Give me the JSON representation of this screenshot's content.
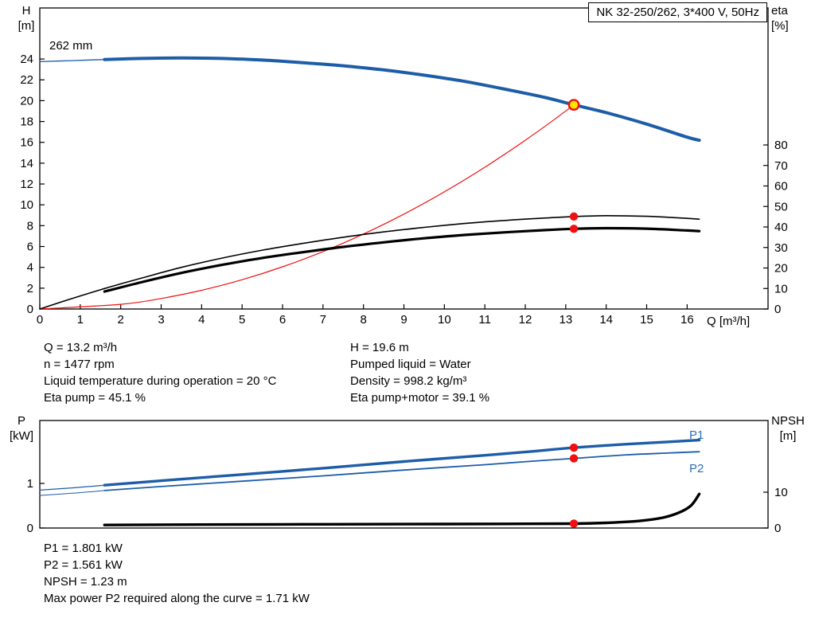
{
  "title_box": {
    "text": "NK 32-250/262, 3*400 V, 50Hz"
  },
  "labels": {
    "h_axis": [
      "H",
      "[m]"
    ],
    "eta_axis": [
      "eta",
      "[%]"
    ],
    "q_axis": "Q [m³/h]",
    "impeller": "262 mm",
    "p_axis": [
      "P",
      "[kW]"
    ],
    "npsh_axis": [
      "NPSH",
      "[m]"
    ],
    "p1": "P1",
    "p2": "P2"
  },
  "info_top": {
    "left": [
      "Q = 13.2 m³/h",
      "n = 1477 rpm",
      "Liquid temperature during operation = 20 °C",
      "Eta pump = 45.1 %"
    ],
    "right": [
      "H = 19.6 m",
      "Pumped liquid = Water",
      "Density = 998.2 kg/m³",
      "Eta pump+motor = 39.1 %"
    ]
  },
  "info_bottom": [
    "P1 = 1.801 kW",
    "P2 = 1.561 kW",
    "NPSH = 1.23 m",
    "Max power P2 required along the curve = 1.71 kW"
  ],
  "colors": {
    "curve_blue": "#1d5da8",
    "label_blue": "#2e6fb0",
    "red": "#ee1111",
    "duty_yellow": "#ffe600",
    "black": "#000000"
  },
  "chart_data": [
    {
      "id": "hq_eta",
      "type": "line",
      "title": "NK 32-250/262, 3*400 V, 50Hz",
      "x_axis": {
        "label": "Q [m³/h]",
        "min": 0,
        "max": 18,
        "ticks": [
          0,
          1,
          2,
          3,
          4,
          5,
          6,
          7,
          8,
          9,
          10,
          11,
          12,
          13,
          14,
          15,
          16
        ]
      },
      "y_left": {
        "label": "H [m]",
        "min": 0,
        "max": 28.9,
        "ticks": [
          0,
          2,
          4,
          6,
          8,
          10,
          12,
          14,
          16,
          18,
          20,
          22,
          24
        ]
      },
      "y_right": {
        "label": "eta [%]",
        "min": 0,
        "max": 146.8,
        "ticks": [
          0,
          10,
          20,
          30,
          40,
          50,
          60,
          70,
          80
        ]
      },
      "duty_point": {
        "Q": 13.2,
        "H": 19.6,
        "eta_pump": 45.1,
        "eta_pump_motor": 39.1
      },
      "series": [
        {
          "name": "head-curve-lead-in",
          "axis": "left",
          "color": "#1d5da8",
          "width": 1.3,
          "points": [
            [
              0,
              23.75
            ],
            [
              0.8,
              23.85
            ],
            [
              1.6,
              23.95
            ]
          ]
        },
        {
          "name": "head-curve-262mm",
          "legend": "262 mm",
          "axis": "left",
          "color": "#1d5da8",
          "width": 4,
          "points": [
            [
              1.6,
              23.95
            ],
            [
              2.5,
              24.05
            ],
            [
              3.5,
              24.1
            ],
            [
              4.5,
              24.05
            ],
            [
              5.5,
              23.9
            ],
            [
              6.5,
              23.65
            ],
            [
              7.5,
              23.35
            ],
            [
              8.5,
              22.95
            ],
            [
              9.5,
              22.45
            ],
            [
              10.5,
              21.85
            ],
            [
              11.5,
              21.1
            ],
            [
              12.5,
              20.3
            ],
            [
              13.2,
              19.6
            ],
            [
              14,
              18.85
            ],
            [
              15,
              17.75
            ],
            [
              16,
              16.5
            ],
            [
              16.3,
              16.2
            ]
          ]
        },
        {
          "name": "system-curve",
          "axis": "left",
          "color": "#ee1111",
          "width": 1.2,
          "points": [
            [
              0,
              0
            ],
            [
              2,
              0.45
            ],
            [
              3,
              1.01
            ],
            [
              4,
              1.8
            ],
            [
              5,
              2.81
            ],
            [
              6,
              4.05
            ],
            [
              7,
              5.51
            ],
            [
              8,
              7.2
            ],
            [
              9,
              9.11
            ],
            [
              10,
              11.25
            ],
            [
              11,
              13.61
            ],
            [
              12,
              16.2
            ],
            [
              12.7,
              18.14
            ],
            [
              13.2,
              19.6
            ]
          ]
        },
        {
          "name": "eta-pump-curve",
          "axis": "right",
          "color": "#000000",
          "width": 1.6,
          "points": [
            [
              0,
              0
            ],
            [
              0.7,
              4.5
            ],
            [
              1.6,
              10
            ],
            [
              2.5,
              15
            ],
            [
              3.5,
              20.3
            ],
            [
              4.5,
              24.8
            ],
            [
              5.5,
              28.7
            ],
            [
              6.5,
              32
            ],
            [
              7.5,
              35
            ],
            [
              8.5,
              37.6
            ],
            [
              9.5,
              39.8
            ],
            [
              10.5,
              41.7
            ],
            [
              11.5,
              43.2
            ],
            [
              12.5,
              44.4
            ],
            [
              13.2,
              45.1
            ],
            [
              14,
              45.5
            ],
            [
              15,
              45.2
            ],
            [
              16,
              44.2
            ],
            [
              16.3,
              43.8
            ]
          ]
        },
        {
          "name": "eta-pump-motor-curve",
          "axis": "right",
          "color": "#000000",
          "width": 3.2,
          "points": [
            [
              1.6,
              8.5
            ],
            [
              2.5,
              13
            ],
            [
              3.5,
              17.6
            ],
            [
              4.5,
              21.5
            ],
            [
              5.5,
              24.9
            ],
            [
              6.5,
              27.7
            ],
            [
              7.5,
              30.3
            ],
            [
              8.5,
              32.5
            ],
            [
              9.5,
              34.5
            ],
            [
              10.5,
              36.1
            ],
            [
              11.5,
              37.4
            ],
            [
              12.5,
              38.5
            ],
            [
              13.2,
              39.1
            ],
            [
              14,
              39.4
            ],
            [
              15,
              39.2
            ],
            [
              16,
              38.3
            ],
            [
              16.3,
              38
            ]
          ]
        }
      ],
      "markers": [
        {
          "name": "duty-point-marker",
          "axis": "left",
          "x": 13.2,
          "y": 19.6,
          "style": "duty"
        },
        {
          "name": "eta-pump-duty-dot",
          "axis": "right",
          "x": 13.2,
          "y": 45.1,
          "style": "dot"
        },
        {
          "name": "eta-pump-motor-duty-dot",
          "axis": "right",
          "x": 13.2,
          "y": 39.1,
          "style": "dot"
        }
      ]
    },
    {
      "id": "power_npsh",
      "type": "line",
      "x_axis": {
        "label": "",
        "min": 0,
        "max": 18,
        "ticks": []
      },
      "y_left": {
        "label": "P [kW]",
        "min": 0,
        "max": 2.41,
        "ticks": [
          0,
          1
        ]
      },
      "y_right": {
        "label": "NPSH [m]",
        "min": 0,
        "max": 30,
        "ticks": [
          0,
          10
        ]
      },
      "duty_point": {
        "Q": 13.2,
        "P1": 1.801,
        "P2": 1.561,
        "NPSH": 1.23
      },
      "series": [
        {
          "name": "p1-curve-lead-in",
          "axis": "left",
          "color": "#1d5da8",
          "width": 1.2,
          "points": [
            [
              0,
              0.85
            ],
            [
              0.8,
              0.9
            ],
            [
              1.6,
              0.96
            ]
          ]
        },
        {
          "name": "p1-curve",
          "axis": "left",
          "color": "#1d5da8",
          "width": 3.4,
          "points": [
            [
              1.6,
              0.96
            ],
            [
              3,
              1.06
            ],
            [
              5,
              1.2
            ],
            [
              7,
              1.34
            ],
            [
              9,
              1.49
            ],
            [
              11,
              1.63
            ],
            [
              12.2,
              1.72
            ],
            [
              13.2,
              1.801
            ],
            [
              14.5,
              1.88
            ],
            [
              15.5,
              1.93
            ],
            [
              16.3,
              1.97
            ]
          ]
        },
        {
          "name": "p2-curve-lead-in",
          "axis": "left",
          "color": "#1d5da8",
          "width": 1,
          "points": [
            [
              0,
              0.73
            ],
            [
              0.8,
              0.78
            ],
            [
              1.6,
              0.84
            ]
          ]
        },
        {
          "name": "p2-curve",
          "axis": "left",
          "color": "#1d5da8",
          "width": 1.8,
          "points": [
            [
              1.6,
              0.84
            ],
            [
              3,
              0.93
            ],
            [
              5,
              1.05
            ],
            [
              7,
              1.17
            ],
            [
              9,
              1.3
            ],
            [
              11,
              1.42
            ],
            [
              12.2,
              1.5
            ],
            [
              13.2,
              1.561
            ],
            [
              14.5,
              1.64
            ],
            [
              15.5,
              1.68
            ],
            [
              16.3,
              1.71
            ]
          ]
        },
        {
          "name": "npsh-curve",
          "axis": "right",
          "color": "#000000",
          "width": 3.4,
          "points": [
            [
              1.6,
              0.85
            ],
            [
              4,
              0.95
            ],
            [
              7,
              1.05
            ],
            [
              10,
              1.12
            ],
            [
              12,
              1.18
            ],
            [
              13.2,
              1.23
            ],
            [
              14,
              1.45
            ],
            [
              14.8,
              1.95
            ],
            [
              15.4,
              2.9
            ],
            [
              15.8,
              4.3
            ],
            [
              16.1,
              6.3
            ],
            [
              16.3,
              9.5
            ]
          ]
        }
      ],
      "markers": [
        {
          "name": "p1-duty-dot",
          "axis": "left",
          "x": 13.2,
          "y": 1.801,
          "style": "dot"
        },
        {
          "name": "p2-duty-dot",
          "axis": "left",
          "x": 13.2,
          "y": 1.561,
          "style": "dot"
        },
        {
          "name": "npsh-duty-dot",
          "axis": "right",
          "x": 13.2,
          "y": 1.23,
          "style": "dot"
        }
      ]
    }
  ]
}
